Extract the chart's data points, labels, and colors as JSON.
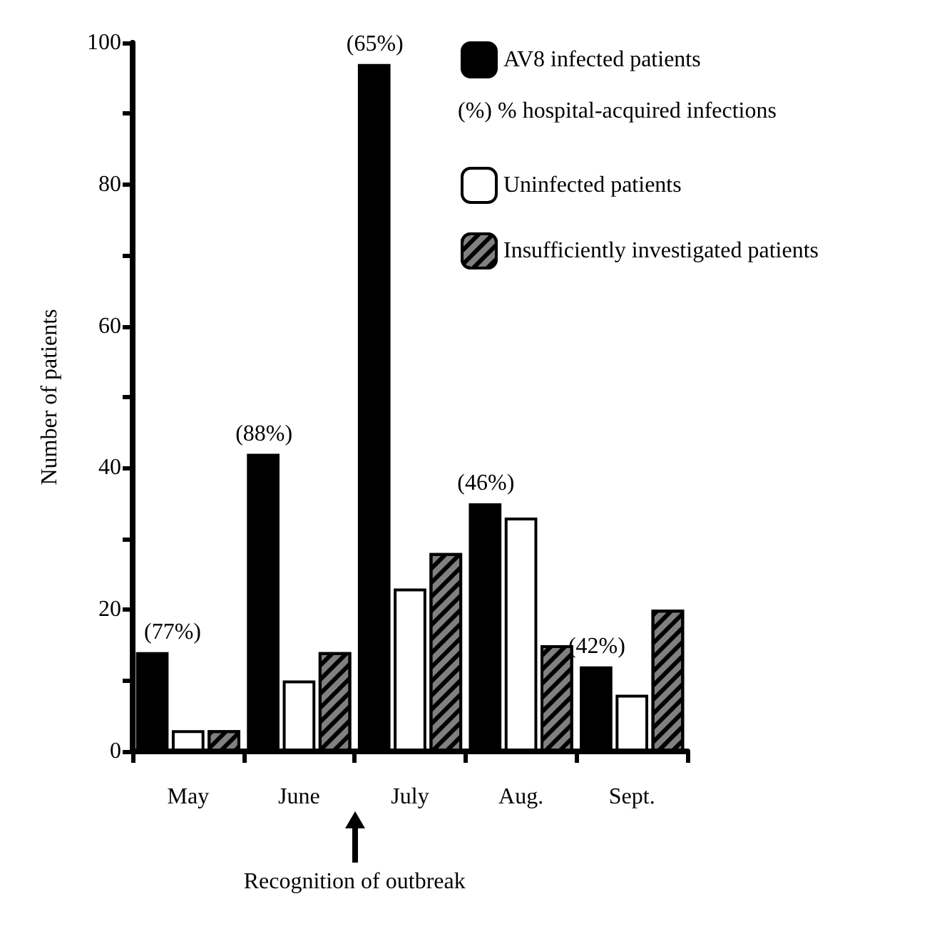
{
  "chart_data": {
    "type": "bar",
    "ylabel": "Number of patients",
    "categories": [
      "May",
      "June",
      "July",
      "Aug.",
      "Sept."
    ],
    "series": [
      {
        "name": "AV8 infected patients",
        "color": "#000000",
        "values": [
          14,
          42,
          97,
          35,
          12
        ]
      },
      {
        "name": "Uninfected patients",
        "color": "#ffffff",
        "values": [
          3,
          10,
          23,
          33,
          8
        ]
      },
      {
        "name": "Insufficiently investigated patients",
        "color": "#808080",
        "values": [
          3,
          14,
          28,
          15,
          20
        ]
      }
    ],
    "ylim": [
      0,
      100
    ],
    "yticks": [
      0,
      {
        "value": 10,
        "label": null
      },
      20,
      {
        "value": 30,
        "label": null
      },
      40,
      {
        "value": 50,
        "label": null
      },
      60,
      {
        "value": 70,
        "label": null
      },
      80,
      {
        "value": 90,
        "label": null
      },
      100
    ],
    "grid": false,
    "legend": "top right",
    "annotations": [
      "(%) % hospital-acquired infections",
      "Recognition of outbreak",
      "(77%)",
      "(88%)",
      "(65%)",
      "(46%)",
      "(42%)"
    ]
  }
}
